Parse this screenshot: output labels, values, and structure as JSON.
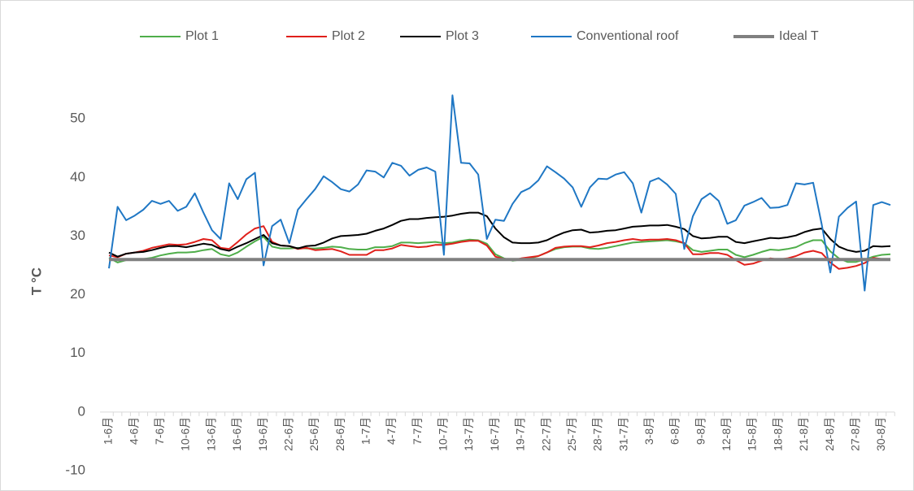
{
  "chart_data": {
    "type": "line",
    "y_label": "T °C",
    "categories": [
      "1-6月",
      null,
      null,
      "4-6月",
      null,
      null,
      "7-6月",
      null,
      null,
      "10-6月",
      null,
      null,
      "13-6月",
      null,
      null,
      "16-6月",
      null,
      null,
      "19-6月",
      null,
      null,
      "22-6月",
      null,
      null,
      "25-6月",
      null,
      null,
      "28-6月",
      null,
      null,
      "1-7月",
      null,
      null,
      "4-7月",
      null,
      null,
      "7-7月",
      null,
      null,
      "10-7月",
      null,
      null,
      "13-7月",
      null,
      null,
      "16-7月",
      null,
      null,
      "19-7月",
      null,
      null,
      "22-7月",
      null,
      null,
      "25-7月",
      null,
      null,
      "28-7月",
      null,
      null,
      "31-7月",
      null,
      null,
      "3-8月",
      null,
      null,
      "6-8月",
      null,
      null,
      "9-8月",
      null,
      null,
      "12-8月",
      null,
      null,
      "15-8月",
      null,
      null,
      "18-8月",
      null,
      null,
      "21-8月",
      null,
      null,
      "24-8月",
      null,
      null,
      "27-8月",
      null,
      null,
      "30-8月",
      null
    ],
    "series": [
      {
        "name": "Plot 1",
        "color": "#4fae4a",
        "width": 2,
        "values": [
          26.3,
          25.5,
          25.9,
          26,
          26.1,
          26.3,
          26.7,
          27,
          27.2,
          27.2,
          27.3,
          27.6,
          27.8,
          26.9,
          26.6,
          27.2,
          28.2,
          29.1,
          29.9,
          28.2,
          27.9,
          27.9,
          28,
          27.9,
          27.9,
          28,
          28.2,
          28.1,
          27.8,
          27.7,
          27.7,
          28.1,
          28.1,
          28.3,
          28.9,
          28.9,
          28.8,
          28.9,
          29,
          28.8,
          28.9,
          29.2,
          29.4,
          29.3,
          28.7,
          26.9,
          26.2,
          25.8,
          26,
          26.2,
          26.6,
          27.2,
          27.8,
          28.1,
          28.2,
          28.2,
          27.9,
          27.8,
          28,
          28.3,
          28.6,
          28.9,
          29,
          29.1,
          29.2,
          29.3,
          29.1,
          28.8,
          27.6,
          27.3,
          27.5,
          27.7,
          27.7,
          26.8,
          26.4,
          26.8,
          27.3,
          27.7,
          27.6,
          27.8,
          28.1,
          28.8,
          29.3,
          29.3,
          27.4,
          26.2,
          25.6,
          25.6,
          26,
          26.5,
          26.8,
          26.9
        ]
      },
      {
        "name": "Plot 2",
        "color": "#e0201b",
        "width": 2,
        "values": [
          26.7,
          26.4,
          27,
          27.2,
          27.5,
          28,
          28.3,
          28.6,
          28.5,
          28.6,
          29,
          29.5,
          29.3,
          28,
          27.8,
          29,
          30.3,
          31.3,
          31.7,
          29,
          28.4,
          28.3,
          27.8,
          28,
          27.6,
          27.7,
          27.8,
          27.4,
          26.8,
          26.8,
          26.8,
          27.6,
          27.6,
          27.9,
          28.5,
          28.3,
          28.1,
          28.2,
          28.5,
          28.5,
          28.7,
          29,
          29.2,
          29.2,
          28.4,
          26.5,
          26.1,
          25.9,
          26.2,
          26.4,
          26.6,
          27.2,
          28,
          28.2,
          28.3,
          28.3,
          28.1,
          28.4,
          28.8,
          29,
          29.3,
          29.5,
          29.3,
          29.4,
          29.4,
          29.5,
          29.3,
          28.8,
          26.9,
          26.9,
          27.1,
          27.1,
          26.8,
          25.9,
          25.1,
          25.3,
          25.8,
          26.2,
          26,
          26.2,
          26.6,
          27.2,
          27.5,
          27.1,
          25.5,
          24.4,
          24.6,
          24.9,
          25.4,
          26.3,
          26.1,
          26.1
        ]
      },
      {
        "name": "Plot 3",
        "color": "#000000",
        "width": 2,
        "values": [
          27.2,
          26.5,
          27,
          27.2,
          27.3,
          27.6,
          28,
          28.3,
          28.3,
          28.1,
          28.4,
          28.7,
          28.5,
          27.8,
          27.5,
          28.2,
          28.8,
          29.5,
          30.2,
          28.8,
          28.4,
          28.3,
          27.9,
          28.3,
          28.4,
          28.9,
          29.6,
          30,
          30.1,
          30.2,
          30.4,
          30.9,
          31.3,
          31.9,
          32.6,
          32.9,
          32.9,
          33.1,
          33.2,
          33.3,
          33.5,
          33.8,
          34,
          34,
          33.4,
          31.3,
          29.8,
          28.9,
          28.8,
          28.8,
          28.9,
          29.3,
          30,
          30.6,
          31,
          31.1,
          30.6,
          30.7,
          30.9,
          31,
          31.3,
          31.6,
          31.7,
          31.8,
          31.8,
          31.9,
          31.6,
          31.2,
          30,
          29.6,
          29.7,
          29.9,
          29.9,
          29,
          28.8,
          29.1,
          29.4,
          29.7,
          29.6,
          29.8,
          30.1,
          30.7,
          31.1,
          31.3,
          29.5,
          28.2,
          27.6,
          27.3,
          27.5,
          28.3,
          28.2,
          28.3
        ]
      },
      {
        "name": "Conventional roof",
        "color": "#1f77c4",
        "width": 2,
        "values": [
          24.5,
          35,
          32.7,
          33.5,
          34.5,
          36,
          35.5,
          36,
          34.3,
          35,
          37.3,
          34,
          31,
          29.5,
          39,
          36.3,
          39.7,
          40.8,
          25,
          31.7,
          32.8,
          28.8,
          34.5,
          36.3,
          38,
          40.2,
          39.2,
          38,
          37.6,
          38.8,
          41.2,
          41,
          40,
          42.5,
          42,
          40.3,
          41.3,
          41.7,
          41,
          26.8,
          54,
          42.5,
          42.4,
          40.5,
          29.5,
          32.8,
          32.6,
          35.5,
          37.5,
          38.2,
          39.5,
          41.9,
          40.9,
          39.8,
          38.3,
          35,
          38.3,
          39.8,
          39.7,
          40.5,
          40.9,
          39,
          34,
          39.3,
          39.9,
          38.8,
          37.2,
          27.8,
          33.4,
          36.3,
          37.3,
          36,
          32.1,
          32.7,
          35.2,
          35.8,
          36.5,
          34.8,
          34.9,
          35.3,
          39,
          38.8,
          39.1,
          32,
          23.8,
          33.3,
          34.8,
          35.9,
          20.7,
          35.3,
          35.8,
          35.3
        ]
      },
      {
        "name": "Ideal T",
        "color": "#808080",
        "width": 4,
        "values": [
          26,
          26,
          26,
          26,
          26,
          26,
          26,
          26,
          26,
          26,
          26,
          26,
          26,
          26,
          26,
          26,
          26,
          26,
          26,
          26,
          26,
          26,
          26,
          26,
          26,
          26,
          26,
          26,
          26,
          26,
          26,
          26,
          26,
          26,
          26,
          26,
          26,
          26,
          26,
          26,
          26,
          26,
          26,
          26,
          26,
          26,
          26,
          26,
          26,
          26,
          26,
          26,
          26,
          26,
          26,
          26,
          26,
          26,
          26,
          26,
          26,
          26,
          26,
          26,
          26,
          26,
          26,
          26,
          26,
          26,
          26,
          26,
          26,
          26,
          26,
          26,
          26,
          26,
          26,
          26,
          26,
          26,
          26,
          26,
          26,
          26,
          26,
          26,
          26,
          26,
          26,
          26
        ]
      }
    ],
    "ylim": [
      -10,
      60
    ],
    "yticks": [
      -10,
      0,
      10,
      20,
      30,
      40,
      50
    ],
    "grid": false,
    "legend": "top"
  }
}
